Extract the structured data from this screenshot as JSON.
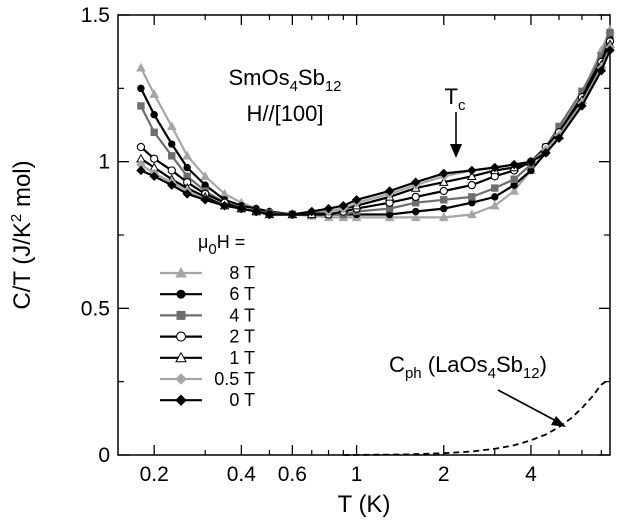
{
  "chart_data": {
    "type": "scatter",
    "title": "",
    "xlabel": "T (K)",
    "ylabel": "C/T (J/K² mol)",
    "x_scale": "log",
    "xlim": [
      0.15,
      7.5
    ],
    "ylim": [
      0,
      1.5
    ],
    "x_ticks": [
      0.2,
      0.4,
      0.6,
      1,
      2,
      4
    ],
    "x_tick_labels": [
      "0.2",
      "0.4",
      "0.6",
      "1",
      "2",
      "4"
    ],
    "y_ticks": [
      0,
      0.5,
      1,
      1.5
    ],
    "y_tick_labels": [
      "0",
      "0.5",
      "1",
      "1.5"
    ],
    "grid": false,
    "legend_title": "μ₀H =",
    "legend_position": "lower-left",
    "annotations": {
      "compound": "SmOs₄Sb₁₂",
      "field_direction": "H//[100]",
      "tc_label": "T_c",
      "phonon_label": "C_ph (LaOs₄Sb₁₂)"
    },
    "series": [
      {
        "name": "8 T",
        "marker": "triangle-up",
        "color": "#a6a6a6",
        "fill": "#a6a6a6",
        "x": [
          0.18,
          0.2,
          0.23,
          0.26,
          0.3,
          0.35,
          0.4,
          0.45,
          0.5,
          0.6,
          0.7,
          0.8,
          0.9,
          1.0,
          1.3,
          1.6,
          2.0,
          2.5,
          3.0,
          3.5,
          4.0,
          4.5,
          5.0,
          6.0,
          7.0,
          7.5
        ],
        "y": [
          1.32,
          1.23,
          1.12,
          1.02,
          0.95,
          0.89,
          0.86,
          0.84,
          0.83,
          0.82,
          0.815,
          0.81,
          0.81,
          0.81,
          0.81,
          0.81,
          0.81,
          0.82,
          0.85,
          0.9,
          0.97,
          1.04,
          1.11,
          1.23,
          1.38,
          1.45
        ]
      },
      {
        "name": "6 T",
        "marker": "circle",
        "color": "#000000",
        "fill": "#000000",
        "x": [
          0.18,
          0.2,
          0.23,
          0.26,
          0.3,
          0.35,
          0.4,
          0.45,
          0.5,
          0.6,
          0.7,
          0.8,
          0.9,
          1.0,
          1.3,
          1.6,
          2.0,
          2.5,
          3.0,
          3.5,
          4.0,
          4.5,
          5.0,
          6.0,
          7.0,
          7.5
        ],
        "y": [
          1.25,
          1.16,
          1.06,
          0.98,
          0.92,
          0.87,
          0.85,
          0.84,
          0.83,
          0.82,
          0.82,
          0.82,
          0.82,
          0.82,
          0.82,
          0.83,
          0.84,
          0.86,
          0.88,
          0.92,
          0.97,
          1.03,
          1.1,
          1.22,
          1.35,
          1.42
        ]
      },
      {
        "name": "4 T",
        "marker": "square",
        "color": "#6e6e6e",
        "fill": "#6e6e6e",
        "x": [
          0.18,
          0.2,
          0.23,
          0.26,
          0.3,
          0.35,
          0.4,
          0.45,
          0.5,
          0.6,
          0.7,
          0.8,
          0.9,
          1.0,
          1.3,
          1.6,
          2.0,
          2.5,
          3.0,
          3.5,
          4.0,
          4.5,
          5.0,
          6.0,
          7.0,
          7.5
        ],
        "y": [
          1.19,
          1.1,
          1.02,
          0.95,
          0.9,
          0.86,
          0.84,
          0.83,
          0.825,
          0.82,
          0.82,
          0.82,
          0.82,
          0.83,
          0.84,
          0.86,
          0.87,
          0.88,
          0.91,
          0.94,
          0.99,
          1.05,
          1.12,
          1.24,
          1.36,
          1.44
        ]
      },
      {
        "name": "2 T",
        "marker": "circle-open",
        "color": "#000000",
        "fill": "#ffffff",
        "x": [
          0.18,
          0.2,
          0.23,
          0.26,
          0.3,
          0.35,
          0.4,
          0.45,
          0.5,
          0.6,
          0.7,
          0.8,
          0.9,
          1.0,
          1.3,
          1.6,
          2.0,
          2.5,
          3.0,
          3.5,
          4.0,
          4.5,
          5.0,
          6.0,
          7.0,
          7.5
        ],
        "y": [
          1.05,
          1.01,
          0.97,
          0.93,
          0.89,
          0.86,
          0.84,
          0.83,
          0.82,
          0.82,
          0.82,
          0.82,
          0.83,
          0.84,
          0.86,
          0.88,
          0.9,
          0.92,
          0.95,
          0.97,
          1.0,
          1.05,
          1.1,
          1.22,
          1.34,
          1.41
        ]
      },
      {
        "name": "1 T",
        "marker": "triangle-open",
        "color": "#000000",
        "fill": "#ffffff",
        "x": [
          0.18,
          0.2,
          0.23,
          0.26,
          0.3,
          0.35,
          0.4,
          0.45,
          0.5,
          0.6,
          0.7,
          0.8,
          0.9,
          1.0,
          1.3,
          1.6,
          2.0,
          2.5,
          3.0,
          3.5,
          4.0,
          4.5,
          5.0,
          6.0,
          7.0,
          7.5
        ],
        "y": [
          1.01,
          0.98,
          0.94,
          0.91,
          0.88,
          0.85,
          0.84,
          0.83,
          0.82,
          0.82,
          0.82,
          0.83,
          0.84,
          0.85,
          0.88,
          0.91,
          0.93,
          0.95,
          0.97,
          0.98,
          1.0,
          1.04,
          1.09,
          1.21,
          1.33,
          1.4
        ]
      },
      {
        "name": "0.5 T",
        "marker": "diamond",
        "color": "#a6a6a6",
        "fill": "#a6a6a6",
        "x": [
          0.18,
          0.2,
          0.23,
          0.26,
          0.3,
          0.35,
          0.4,
          0.45,
          0.5,
          0.6,
          0.7,
          0.8,
          0.9,
          1.0,
          1.3,
          1.6,
          2.0,
          2.5,
          3.0,
          3.5,
          4.0,
          4.5,
          5.0,
          6.0,
          7.0,
          7.5
        ],
        "y": [
          0.99,
          0.96,
          0.93,
          0.9,
          0.87,
          0.85,
          0.84,
          0.83,
          0.82,
          0.82,
          0.83,
          0.83,
          0.84,
          0.86,
          0.89,
          0.92,
          0.95,
          0.97,
          0.98,
          0.99,
          1.0,
          1.04,
          1.09,
          1.2,
          1.32,
          1.39
        ]
      },
      {
        "name": "0 T",
        "marker": "diamond",
        "color": "#000000",
        "fill": "#000000",
        "x": [
          0.18,
          0.2,
          0.23,
          0.26,
          0.3,
          0.35,
          0.4,
          0.45,
          0.5,
          0.6,
          0.7,
          0.8,
          0.9,
          1.0,
          1.3,
          1.6,
          2.0,
          2.5,
          3.0,
          3.5,
          4.0,
          4.5,
          5.0,
          6.0,
          7.0,
          7.5
        ],
        "y": [
          0.97,
          0.95,
          0.92,
          0.89,
          0.87,
          0.85,
          0.84,
          0.83,
          0.82,
          0.82,
          0.83,
          0.84,
          0.85,
          0.87,
          0.9,
          0.93,
          0.96,
          0.97,
          0.98,
          0.99,
          1.0,
          1.03,
          1.08,
          1.19,
          1.31,
          1.38
        ]
      }
    ],
    "phonon_curve": {
      "name": "C_ph (LaOs₄Sb₁₂)",
      "style": "dashed",
      "color": "#000000",
      "x": [
        0.9,
        1.2,
        1.5,
        2.0,
        2.5,
        3.0,
        3.5,
        4.0,
        4.5,
        5.0,
        5.5,
        6.0,
        6.5,
        7.0,
        7.5
      ],
      "y": [
        0.0,
        0.001,
        0.002,
        0.006,
        0.012,
        0.021,
        0.033,
        0.05,
        0.07,
        0.095,
        0.125,
        0.16,
        0.198,
        0.24,
        0.26
      ]
    }
  }
}
